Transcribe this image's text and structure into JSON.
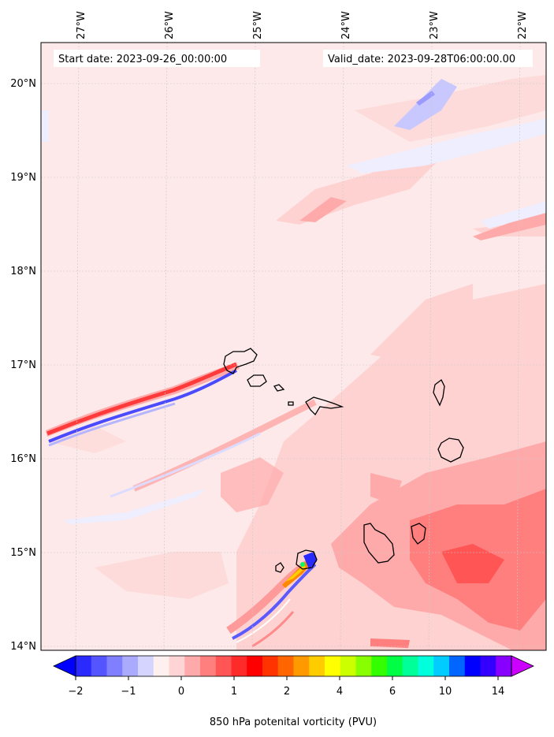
{
  "header": {
    "start_date": "Start date: 2023-09-26_00:00:00",
    "valid_date": "Valid_date: 2023-09-28T06:00:00.00"
  },
  "map": {
    "lon_labels": [
      "27°W",
      "26°W",
      "25°W",
      "24°W",
      "23°W",
      "22°W"
    ],
    "lat_labels": [
      "20°N",
      "19°N",
      "18°N",
      "17°N",
      "16°N",
      "15°N",
      "14°N"
    ],
    "background_color": "#fde8e8",
    "coastline_color": "#000000",
    "islands": [
      "Santo Antão",
      "São Vicente",
      "Santa Luzia",
      "São Nicolau",
      "Sal",
      "Boa Vista",
      "Maio",
      "Santiago",
      "Fogo",
      "Brava"
    ]
  },
  "colorbar": {
    "tick_labels": [
      "−2",
      "−1",
      "0",
      "1",
      "2",
      "4",
      "6",
      "10",
      "14"
    ],
    "label": "850 hPa potenital vorticity (PVU)",
    "colors": [
      "#0000ff",
      "#2a2aff",
      "#5555ff",
      "#7f7fff",
      "#aaaaff",
      "#d4d4ff",
      "#fff0f0",
      "#ffd4d4",
      "#ffaaaa",
      "#ff7f7f",
      "#ff5555",
      "#ff2a2a",
      "#ff0000",
      "#ff3300",
      "#ff6600",
      "#ff9900",
      "#ffcc00",
      "#ffff00",
      "#ccff00",
      "#88ff00",
      "#33ff00",
      "#00ff44",
      "#00ff99",
      "#00ffdd",
      "#00ccff",
      "#0066ff",
      "#0000ff",
      "#3300ff",
      "#8800ff",
      "#cc00ff"
    ]
  }
}
